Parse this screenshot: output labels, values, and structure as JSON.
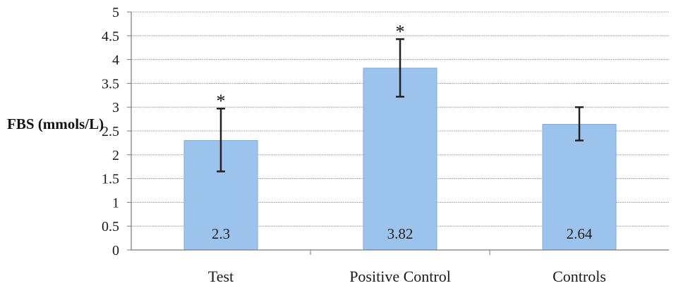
{
  "chart_data": {
    "type": "bar",
    "categories": [
      "Test",
      "Positive Control",
      "Controls"
    ],
    "values": [
      2.3,
      3.82,
      2.64
    ],
    "error_low": [
      1.65,
      3.22,
      2.3
    ],
    "error_high": [
      2.97,
      4.43,
      3.0
    ],
    "significance": [
      "*",
      "*",
      ""
    ],
    "data_labels": [
      "2.3",
      "3.82",
      "2.64"
    ],
    "title": "",
    "xlabel": "",
    "ylabel": "FBS (mmols/L)",
    "ylim": [
      0,
      5
    ],
    "yticks": [
      0,
      0.5,
      1,
      1.5,
      2,
      2.5,
      3,
      3.5,
      4,
      4.5,
      5
    ],
    "ytick_labels": [
      "0",
      "0.5",
      "1",
      "1.5",
      "2",
      "2.5",
      "3",
      "3.5",
      "4",
      "4.5",
      "5"
    ],
    "grid": true,
    "legend": "none",
    "colors": {
      "bar": "#9cc3ec",
      "bar_edge": "#7eaee0",
      "gridline": "#a0a0b0",
      "error_bar": "#222222",
      "axis": "#7a7a7a"
    }
  }
}
